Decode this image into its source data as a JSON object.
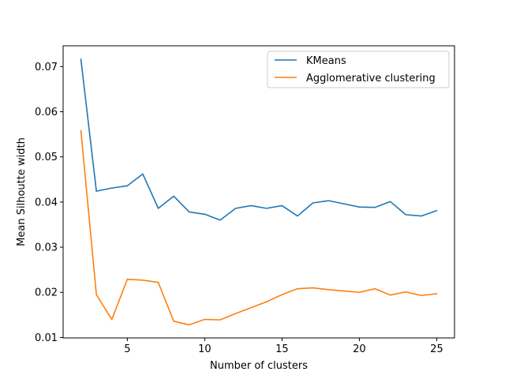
{
  "chart_data": {
    "type": "line",
    "title": "",
    "xlabel": "Number of clusters",
    "ylabel": "Mean Silhoutte width",
    "xlim": [
      0.85,
      26.15
    ],
    "ylim": [
      0.0099,
      0.0746
    ],
    "xticks": [
      5,
      10,
      15,
      20,
      25
    ],
    "yticks": [
      0.01,
      0.02,
      0.03,
      0.04,
      0.05,
      0.06,
      0.07
    ],
    "xtick_labels": [
      "5",
      "10",
      "15",
      "20",
      "25"
    ],
    "ytick_labels": [
      "0.01",
      "0.02",
      "0.03",
      "0.04",
      "0.05",
      "0.06",
      "0.07"
    ],
    "legend_position": "top-right",
    "x": [
      2,
      3,
      4,
      5,
      6,
      7,
      8,
      9,
      10,
      11,
      12,
      13,
      14,
      15,
      16,
      17,
      18,
      19,
      20,
      21,
      22,
      23,
      24,
      25
    ],
    "series": [
      {
        "name": "KMeans",
        "color": "#1f77b4",
        "values": [
          0.0716,
          0.0424,
          0.0431,
          0.0436,
          0.0462,
          0.0386,
          0.0413,
          0.0378,
          0.0373,
          0.036,
          0.0386,
          0.0392,
          0.0386,
          0.0392,
          0.0369,
          0.0398,
          0.0403,
          0.0396,
          0.0389,
          0.0388,
          0.0401,
          0.0372,
          0.0369,
          0.0381
        ]
      },
      {
        "name": "Agglomerative clustering",
        "color": "#ff7f0e",
        "values": [
          0.0558,
          0.0195,
          0.014,
          0.0229,
          0.0227,
          0.0222,
          0.0136,
          0.0128,
          0.014,
          0.0139,
          0.0153,
          0.0166,
          0.0179,
          0.0195,
          0.0208,
          0.021,
          0.0206,
          0.0203,
          0.02,
          0.0208,
          0.0194,
          0.0201,
          0.0193,
          0.0197
        ]
      }
    ]
  }
}
